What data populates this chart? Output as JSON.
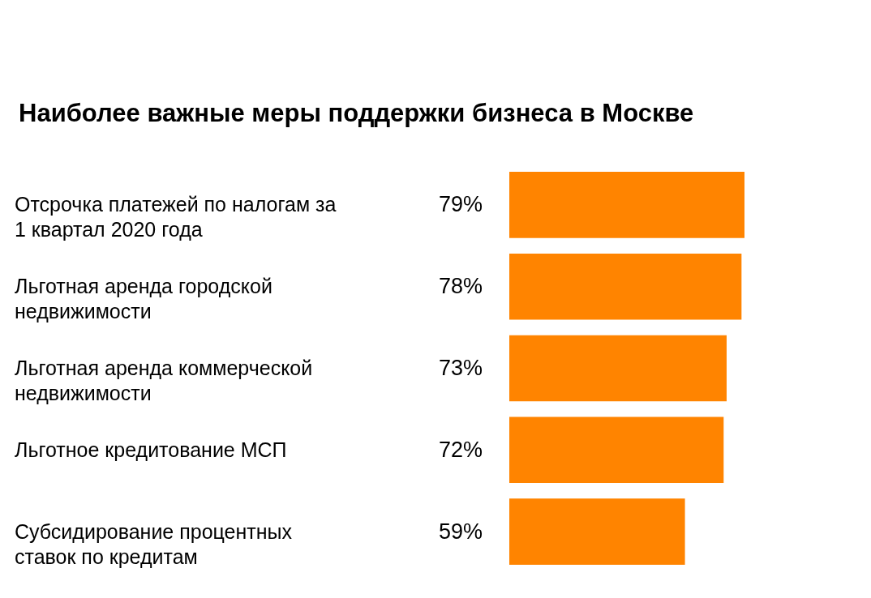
{
  "chart_data": {
    "type": "bar",
    "orientation": "horizontal",
    "title": "Наиболее важные меры поддержки бизнеса в Москве",
    "categories": [
      "Отсрочка платежей по налогам за 1 квартал 2020 года",
      "Льготная аренда городской недвижимости",
      "Льготная аренда коммерческой недвижимости",
      "Льготное кредитование МСП",
      "Субсидирование процентных ставок по кредитам"
    ],
    "values": [
      79,
      78,
      73,
      72,
      59
    ],
    "value_labels": [
      "79%",
      "78%",
      "73%",
      "72%",
      "59%"
    ],
    "color": "#ff8400",
    "tick_labels": false
  }
}
